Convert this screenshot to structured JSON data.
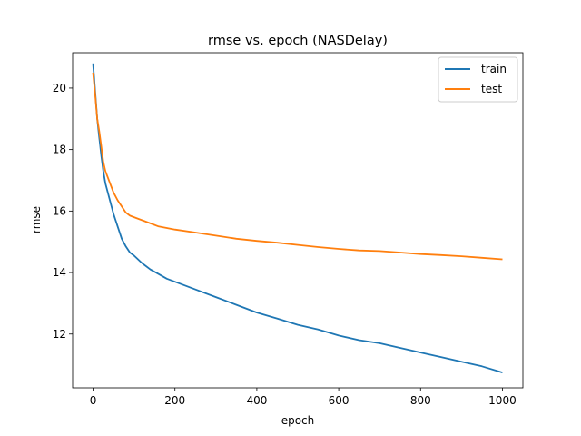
{
  "chart_data": {
    "type": "line",
    "title": "rmse vs. epoch (NASDelay)",
    "xlabel": "epoch",
    "ylabel": "rmse",
    "xlim": [
      -50,
      1050
    ],
    "ylim": [
      10.25,
      21.15
    ],
    "xticks": [
      0,
      200,
      400,
      600,
      800,
      1000
    ],
    "yticks": [
      12,
      14,
      16,
      18,
      20
    ],
    "grid": false,
    "legend_position": "top-right",
    "series": [
      {
        "name": "train",
        "color": "#1f77b4",
        "x": [
          0,
          5,
          10,
          15,
          20,
          25,
          30,
          40,
          50,
          60,
          70,
          80,
          90,
          100,
          120,
          140,
          160,
          180,
          200,
          250,
          300,
          350,
          400,
          450,
          500,
          550,
          600,
          650,
          700,
          750,
          800,
          850,
          900,
          950,
          1000
        ],
        "y": [
          20.8,
          19.9,
          19.0,
          18.4,
          17.8,
          17.3,
          16.9,
          16.4,
          15.9,
          15.5,
          15.1,
          14.85,
          14.65,
          14.55,
          14.3,
          14.1,
          13.95,
          13.8,
          13.7,
          13.45,
          13.2,
          12.95,
          12.7,
          12.5,
          12.3,
          12.15,
          11.95,
          11.8,
          11.7,
          11.55,
          11.4,
          11.25,
          11.1,
          10.95,
          10.75
        ]
      },
      {
        "name": "test",
        "color": "#ff7f0e",
        "x": [
          0,
          5,
          10,
          15,
          20,
          25,
          30,
          40,
          50,
          60,
          70,
          80,
          90,
          100,
          120,
          140,
          160,
          180,
          200,
          250,
          300,
          350,
          400,
          450,
          500,
          550,
          600,
          650,
          700,
          750,
          800,
          850,
          900,
          950,
          1000
        ],
        "y": [
          20.5,
          19.8,
          19.0,
          18.6,
          18.1,
          17.6,
          17.3,
          16.95,
          16.6,
          16.35,
          16.15,
          15.95,
          15.85,
          15.8,
          15.7,
          15.6,
          15.5,
          15.45,
          15.4,
          15.3,
          15.2,
          15.1,
          15.03,
          14.97,
          14.9,
          14.83,
          14.77,
          14.72,
          14.7,
          14.65,
          14.6,
          14.57,
          14.53,
          14.48,
          14.43
        ]
      }
    ]
  }
}
